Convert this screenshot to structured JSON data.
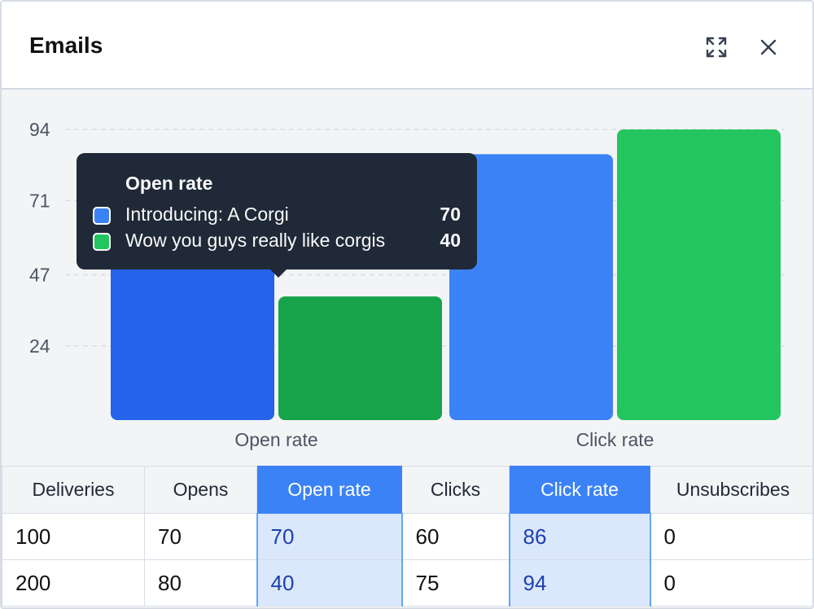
{
  "panel": {
    "title": "Emails",
    "expand_icon": "expand-icon",
    "close_icon": "close-icon"
  },
  "chart_data": {
    "type": "bar",
    "categories": [
      "Open rate",
      "Click rate"
    ],
    "series": [
      {
        "name": "Introducing: A Corgi",
        "values": [
          70,
          86
        ],
        "color": "#3b82f6"
      },
      {
        "name": "Wow you guys really like corgis",
        "values": [
          40,
          94
        ],
        "color": "#22c55e"
      }
    ],
    "y_ticks": [
      24,
      47,
      71,
      94
    ],
    "ylim": [
      0,
      94
    ],
    "grid": true,
    "hovered_category": "Open rate",
    "hover_colors": {
      "Introducing: A Corgi": "#2563eb",
      "Wow you guys really like corgis": "#16a34a"
    }
  },
  "tooltip": {
    "title": "Open rate",
    "rows": [
      {
        "label": "Introducing: A Corgi",
        "value": "70",
        "color": "#3b82f6"
      },
      {
        "label": "Wow you guys really like corgis",
        "value": "40",
        "color": "#22c55e"
      }
    ]
  },
  "table": {
    "columns": [
      "Deliveries",
      "Opens",
      "Open rate",
      "Clicks",
      "Click rate",
      "Unsubscribes"
    ],
    "highlighted": [
      "Open rate",
      "Click rate"
    ],
    "rows": [
      [
        "100",
        "70",
        "70",
        "60",
        "86",
        "0"
      ],
      [
        "200",
        "80",
        "40",
        "75",
        "94",
        "0"
      ]
    ]
  }
}
